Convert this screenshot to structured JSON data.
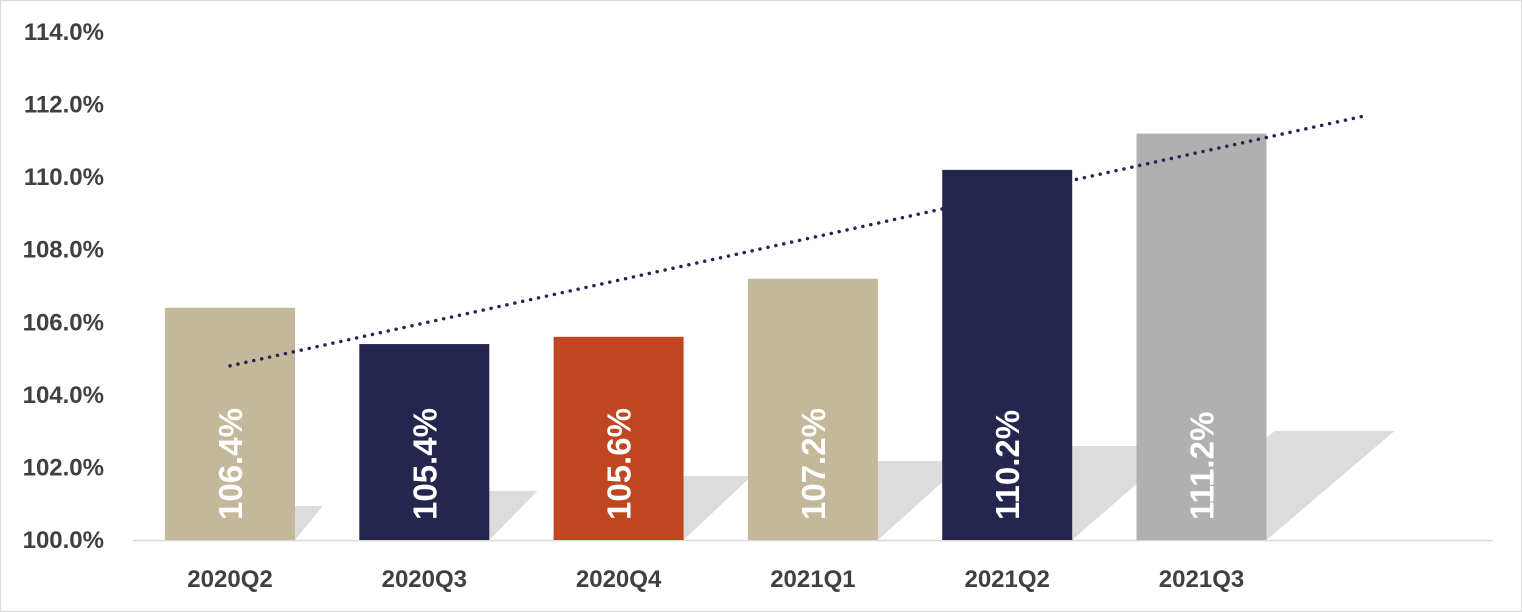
{
  "chart_data": {
    "type": "bar",
    "title": "",
    "xlabel": "",
    "ylabel": "",
    "categories": [
      "2020Q2",
      "2020Q3",
      "2020Q4",
      "2021Q1",
      "2021Q2",
      "2021Q3"
    ],
    "values": [
      106.4,
      105.4,
      105.6,
      107.2,
      110.2,
      111.2
    ],
    "value_labels": [
      "106.4%",
      "105.4%",
      "105.6%",
      "107.2%",
      "110.2%",
      "111.2%"
    ],
    "bar_colors": [
      "#c3b89a",
      "#24264d",
      "#c0461f",
      "#c3b89a",
      "#24264d",
      "#b0b0b0"
    ],
    "ylim": [
      100,
      114
    ],
    "yticks": [
      100,
      102,
      104,
      106,
      108,
      110,
      112,
      114
    ],
    "ytick_labels": [
      "100.0%",
      "102.0%",
      "104.0%",
      "106.0%",
      "108.0%",
      "110.0%",
      "112.0%",
      "114.0%"
    ],
    "trendline": {
      "style": "dotted",
      "color": "#24264d",
      "start_value": 104.8,
      "end_value": 111.7
    },
    "grid": false,
    "legend": "none",
    "bar_shadow": true
  }
}
